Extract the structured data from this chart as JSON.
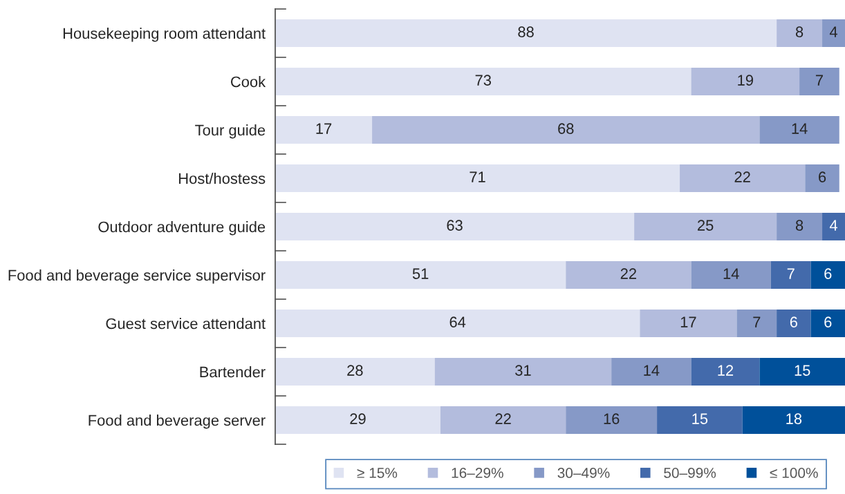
{
  "chart_data": {
    "type": "bar",
    "orientation": "horizontal",
    "stacked": true,
    "categories": [
      "Housekeeping room attendant",
      "Cook",
      "Tour guide",
      "Host/hostess",
      "Outdoor adventure guide",
      "Food and beverage service supervisor",
      "Guest service attendant",
      "Bartender",
      "Food and beverage server"
    ],
    "series": [
      {
        "name": "≥ 15%",
        "color": "#dfe3f2",
        "values": [
          88,
          73,
          17,
          71,
          63,
          51,
          64,
          28,
          29
        ]
      },
      {
        "name": "16–29%",
        "color": "#b3bcdd",
        "values": [
          8,
          19,
          68,
          22,
          25,
          22,
          17,
          31,
          22
        ]
      },
      {
        "name": "30–49%",
        "color": "#8699c7",
        "values": [
          4,
          7,
          14,
          6,
          8,
          14,
          7,
          14,
          16
        ]
      },
      {
        "name": "50–99%",
        "color": "#436aab",
        "values": [
          null,
          null,
          null,
          null,
          4,
          7,
          6,
          12,
          15
        ]
      },
      {
        "name": "≤ 100%",
        "color": "#00509a",
        "values": [
          null,
          null,
          null,
          null,
          null,
          6,
          6,
          15,
          18
        ]
      }
    ],
    "xlim": [
      0,
      100
    ],
    "tick_labels": "y",
    "data_labels": true,
    "legend": "bottom"
  }
}
